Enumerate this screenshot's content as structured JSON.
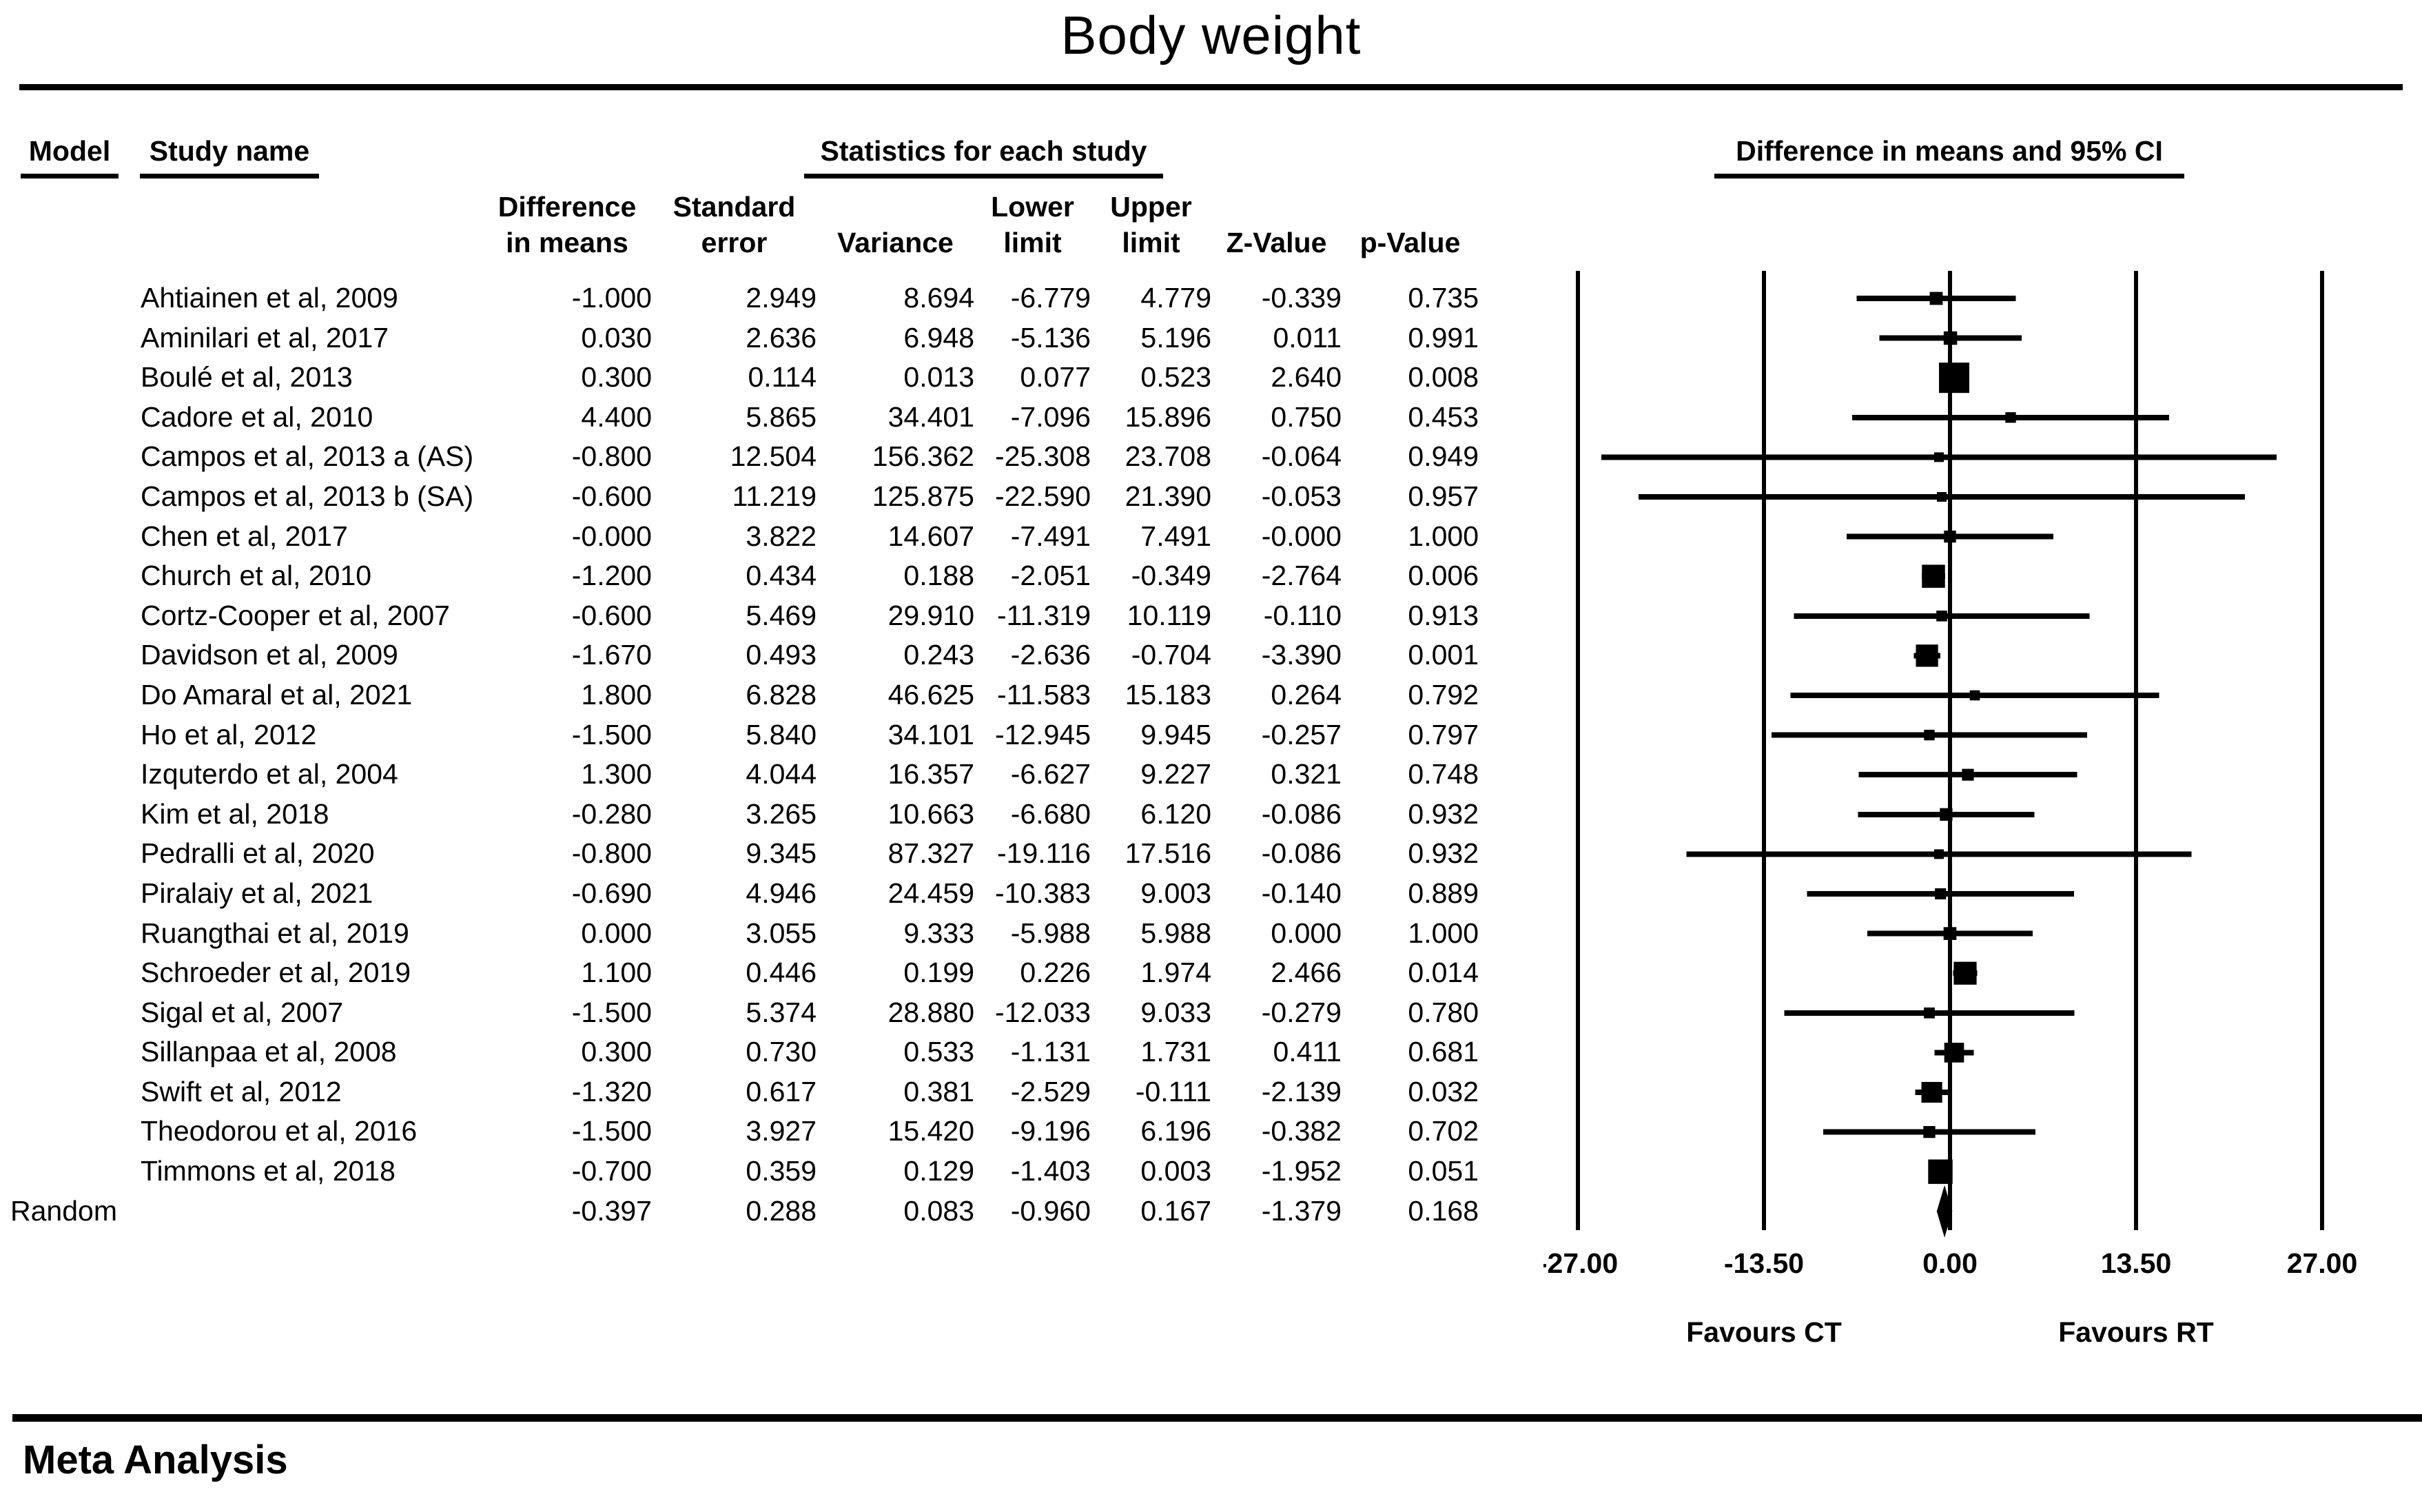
{
  "title": "Body weight",
  "footer": {
    "label": "Meta Analysis"
  },
  "table": {
    "model_header": "Model",
    "study_header": "Study name",
    "stats_header": "Statistics for each study",
    "ci_header": "Difference in means and 95% CI",
    "col_headers": [
      {
        "top": "Difference",
        "bottom": "in means"
      },
      {
        "top": "Standard",
        "bottom": "error"
      },
      {
        "top": "",
        "bottom": "Variance"
      },
      {
        "top": "Lower",
        "bottom": "limit"
      },
      {
        "top": "Upper",
        "bottom": "limit"
      },
      {
        "top": "",
        "bottom": "Z-Value"
      },
      {
        "top": "",
        "bottom": "p-Value"
      }
    ]
  },
  "chart_data": {
    "type": "forest",
    "title": "Body weight",
    "x_axis": {
      "min": -27,
      "max": 27,
      "ticks": [
        -27,
        -13.5,
        0,
        13.5,
        27
      ],
      "tick_labels": [
        "-27.00",
        "-13.50",
        "0.00",
        "13.50",
        "27.00"
      ]
    },
    "favours": {
      "left": "Favours CT",
      "right": "Favours RT"
    },
    "columns": [
      "Difference in means",
      "Standard error",
      "Variance",
      "Lower limit",
      "Upper limit",
      "Z-Value",
      "p-Value"
    ],
    "studies": [
      {
        "model": "",
        "name": "Ahtiainen et al, 2009",
        "diff": "-1.000",
        "se": "2.949",
        "variance": "8.694",
        "lower": "-6.779",
        "upper": "4.779",
        "z": "-0.339",
        "p": "0.735"
      },
      {
        "model": "",
        "name": "Aminilari et al, 2017",
        "diff": "0.030",
        "se": "2.636",
        "variance": "6.948",
        "lower": "-5.136",
        "upper": "5.196",
        "z": "0.011",
        "p": "0.991"
      },
      {
        "model": "",
        "name": "Boulé et al, 2013",
        "diff": "0.300",
        "se": "0.114",
        "variance": "0.013",
        "lower": "0.077",
        "upper": "0.523",
        "z": "2.640",
        "p": "0.008"
      },
      {
        "model": "",
        "name": "Cadore et al, 2010",
        "diff": "4.400",
        "se": "5.865",
        "variance": "34.401",
        "lower": "-7.096",
        "upper": "15.896",
        "z": "0.750",
        "p": "0.453"
      },
      {
        "model": "",
        "name": "Campos et al, 2013 a (AS)",
        "diff": "-0.800",
        "se": "12.504",
        "variance": "156.362",
        "lower": "-25.308",
        "upper": "23.708",
        "z": "-0.064",
        "p": "0.949"
      },
      {
        "model": "",
        "name": "Campos et al, 2013 b (SA)",
        "diff": "-0.600",
        "se": "11.219",
        "variance": "125.875",
        "lower": "-22.590",
        "upper": "21.390",
        "z": "-0.053",
        "p": "0.957"
      },
      {
        "model": "",
        "name": "Chen et al, 2017",
        "diff": "-0.000",
        "se": "3.822",
        "variance": "14.607",
        "lower": "-7.491",
        "upper": "7.491",
        "z": "-0.000",
        "p": "1.000"
      },
      {
        "model": "",
        "name": "Church et al, 2010",
        "diff": "-1.200",
        "se": "0.434",
        "variance": "0.188",
        "lower": "-2.051",
        "upper": "-0.349",
        "z": "-2.764",
        "p": "0.006"
      },
      {
        "model": "",
        "name": "Cortz-Cooper et al, 2007",
        "diff": "-0.600",
        "se": "5.469",
        "variance": "29.910",
        "lower": "-11.319",
        "upper": "10.119",
        "z": "-0.110",
        "p": "0.913"
      },
      {
        "model": "",
        "name": "Davidson et al, 2009",
        "diff": "-1.670",
        "se": "0.493",
        "variance": "0.243",
        "lower": "-2.636",
        "upper": "-0.704",
        "z": "-3.390",
        "p": "0.001"
      },
      {
        "model": "",
        "name": "Do Amaral et al, 2021",
        "diff": "1.800",
        "se": "6.828",
        "variance": "46.625",
        "lower": "-11.583",
        "upper": "15.183",
        "z": "0.264",
        "p": "0.792"
      },
      {
        "model": "",
        "name": "Ho et al, 2012",
        "diff": "-1.500",
        "se": "5.840",
        "variance": "34.101",
        "lower": "-12.945",
        "upper": "9.945",
        "z": "-0.257",
        "p": "0.797"
      },
      {
        "model": "",
        "name": "Izquterdo et al, 2004",
        "diff": "1.300",
        "se": "4.044",
        "variance": "16.357",
        "lower": "-6.627",
        "upper": "9.227",
        "z": "0.321",
        "p": "0.748"
      },
      {
        "model": "",
        "name": "Kim et al, 2018",
        "diff": "-0.280",
        "se": "3.265",
        "variance": "10.663",
        "lower": "-6.680",
        "upper": "6.120",
        "z": "-0.086",
        "p": "0.932"
      },
      {
        "model": "",
        "name": "Pedralli et al, 2020",
        "diff": "-0.800",
        "se": "9.345",
        "variance": "87.327",
        "lower": "-19.116",
        "upper": "17.516",
        "z": "-0.086",
        "p": "0.932"
      },
      {
        "model": "",
        "name": "Piralaiy et al, 2021",
        "diff": "-0.690",
        "se": "4.946",
        "variance": "24.459",
        "lower": "-10.383",
        "upper": "9.003",
        "z": "-0.140",
        "p": "0.889"
      },
      {
        "model": "",
        "name": "Ruangthai et al, 2019",
        "diff": "0.000",
        "se": "3.055",
        "variance": "9.333",
        "lower": "-5.988",
        "upper": "5.988",
        "z": "0.000",
        "p": "1.000"
      },
      {
        "model": "",
        "name": "Schroeder et al, 2019",
        "diff": "1.100",
        "se": "0.446",
        "variance": "0.199",
        "lower": "0.226",
        "upper": "1.974",
        "z": "2.466",
        "p": "0.014"
      },
      {
        "model": "",
        "name": "Sigal et al, 2007",
        "diff": "-1.500",
        "se": "5.374",
        "variance": "28.880",
        "lower": "-12.033",
        "upper": "9.033",
        "z": "-0.279",
        "p": "0.780"
      },
      {
        "model": "",
        "name": "Sillanpaa et al, 2008",
        "diff": "0.300",
        "se": "0.730",
        "variance": "0.533",
        "lower": "-1.131",
        "upper": "1.731",
        "z": "0.411",
        "p": "0.681"
      },
      {
        "model": "",
        "name": "Swift et al, 2012",
        "diff": "-1.320",
        "se": "0.617",
        "variance": "0.381",
        "lower": "-2.529",
        "upper": "-0.111",
        "z": "-2.139",
        "p": "0.032"
      },
      {
        "model": "",
        "name": "Theodorou et al, 2016",
        "diff": "-1.500",
        "se": "3.927",
        "variance": "15.420",
        "lower": "-9.196",
        "upper": "6.196",
        "z": "-0.382",
        "p": "0.702"
      },
      {
        "model": "",
        "name": "Timmons et al, 2018",
        "diff": "-0.700",
        "se": "0.359",
        "variance": "0.129",
        "lower": "-1.403",
        "upper": "0.003",
        "z": "-1.952",
        "p": "0.051"
      },
      {
        "model": "Random",
        "name": "",
        "diff": "-0.397",
        "se": "0.288",
        "variance": "0.083",
        "lower": "-0.960",
        "upper": "0.167",
        "z": "-1.379",
        "p": "0.168"
      }
    ]
  }
}
